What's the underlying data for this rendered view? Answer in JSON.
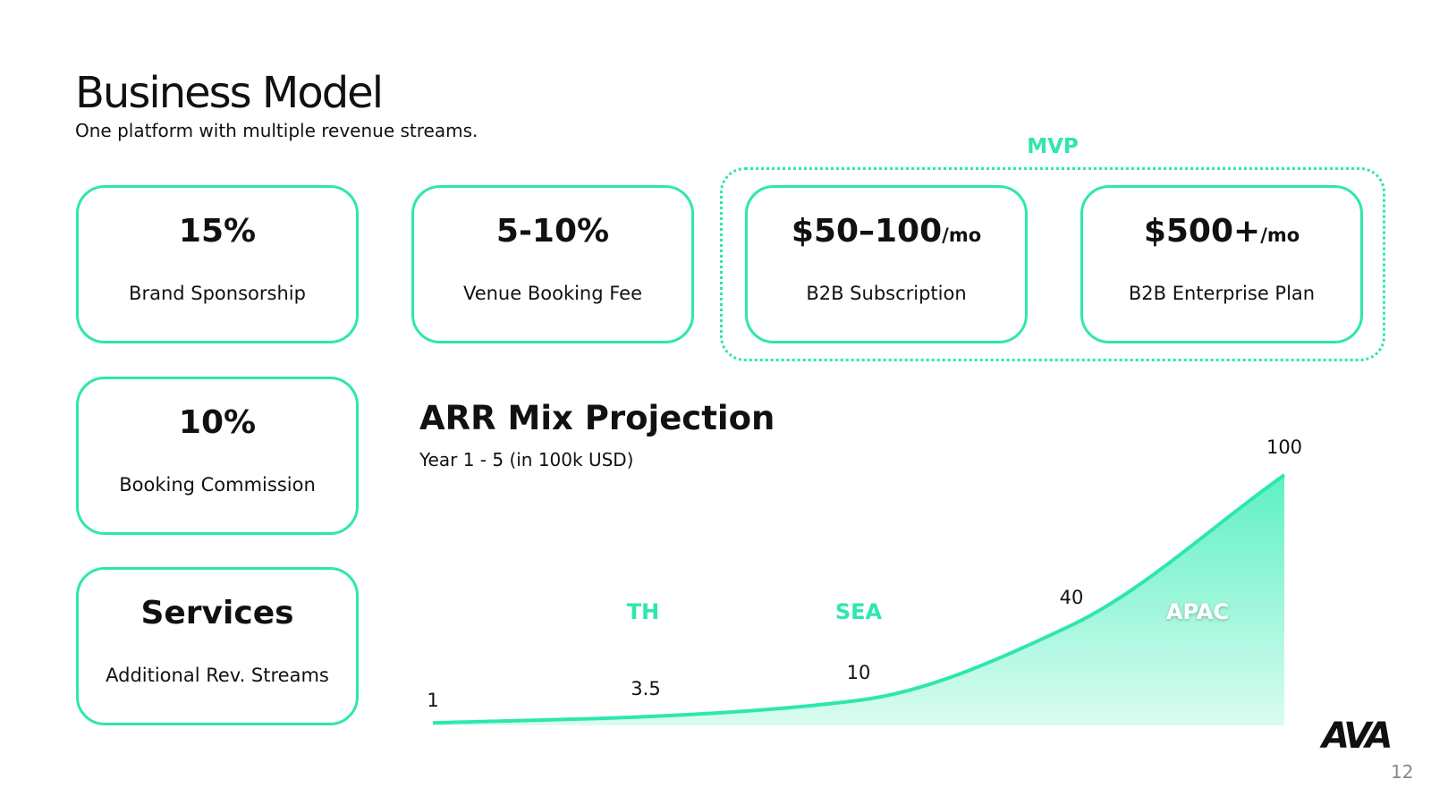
{
  "header": {
    "title": "Business Model",
    "subtitle": "One platform with multiple revenue streams."
  },
  "mvp_label": "MVP",
  "cards": [
    {
      "value": "15%",
      "label": "Brand Sponsorship"
    },
    {
      "value": "5-10%",
      "label": "Venue Booking Fee"
    },
    {
      "value": "$50–100",
      "unit": "/mo",
      "label": "B2B Subscription"
    },
    {
      "value": "$500+",
      "unit": "/mo",
      "label": "B2B Enterprise Plan"
    },
    {
      "value": "10%",
      "label": "Booking Commission"
    },
    {
      "value": "Services",
      "label": "Additional Rev. Streams"
    }
  ],
  "chart_data": {
    "type": "area",
    "title": "ARR Mix Projection",
    "subtitle": "Year 1 - 5 (in 100k USD)",
    "values": [
      1,
      3.5,
      10,
      40,
      100
    ],
    "color": "#2ee6b0",
    "regions": [
      "TH",
      "SEA",
      "APAC"
    ]
  },
  "footer": {
    "logo": "AVA",
    "page": "12"
  }
}
